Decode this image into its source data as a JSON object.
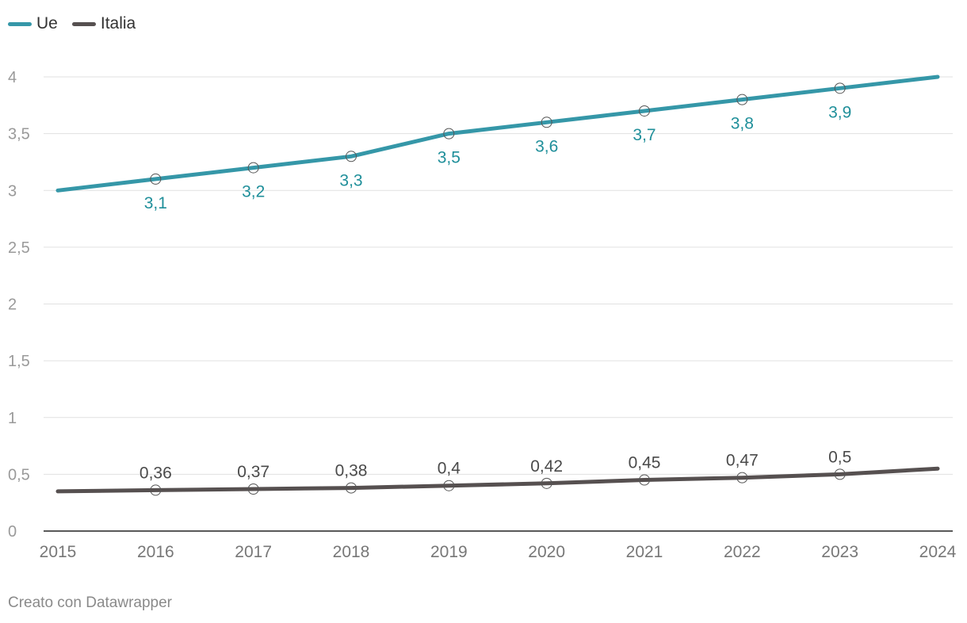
{
  "legend": [
    {
      "label": "Ue",
      "color": "#3597a8"
    },
    {
      "label": "Italia",
      "color": "#565050"
    }
  ],
  "footer": "Creato con Datawrapper",
  "chart_data": {
    "type": "line",
    "categories": [
      "2015",
      "2016",
      "2017",
      "2018",
      "2019",
      "2020",
      "2021",
      "2022",
      "2023",
      "2024"
    ],
    "ylim": [
      0,
      4
    ],
    "yticks": [
      {
        "value": 0,
        "label": "0"
      },
      {
        "value": 0.5,
        "label": "0,5"
      },
      {
        "value": 1,
        "label": "1"
      },
      {
        "value": 1.5,
        "label": "1,5"
      },
      {
        "value": 2,
        "label": "2"
      },
      {
        "value": 2.5,
        "label": "2,5"
      },
      {
        "value": 3,
        "label": "3"
      },
      {
        "value": 3.5,
        "label": "3,5"
      },
      {
        "value": 4,
        "label": "4"
      }
    ],
    "series": [
      {
        "name": "Ue",
        "color": "#3597a8",
        "label_color": "#1f8f9a",
        "label_position": "below",
        "values": [
          3.0,
          3.1,
          3.2,
          3.3,
          3.5,
          3.6,
          3.7,
          3.8,
          3.9,
          4.0
        ],
        "labels": [
          null,
          "3,1",
          "3,2",
          "3,3",
          "3,5",
          "3,6",
          "3,7",
          "3,8",
          "3,9",
          null
        ]
      },
      {
        "name": "Italia",
        "color": "#565050",
        "label_color": "#4a4a4a",
        "label_position": "above",
        "values": [
          0.35,
          0.36,
          0.37,
          0.38,
          0.4,
          0.42,
          0.45,
          0.47,
          0.5,
          0.55
        ],
        "labels": [
          null,
          "0,36",
          "0,37",
          "0,38",
          "0,4",
          "0,42",
          "0,45",
          "0,47",
          "0,5",
          null
        ]
      }
    ],
    "title": "",
    "xlabel": "",
    "ylabel": "",
    "grid": true,
    "legend_position": "top-left"
  }
}
